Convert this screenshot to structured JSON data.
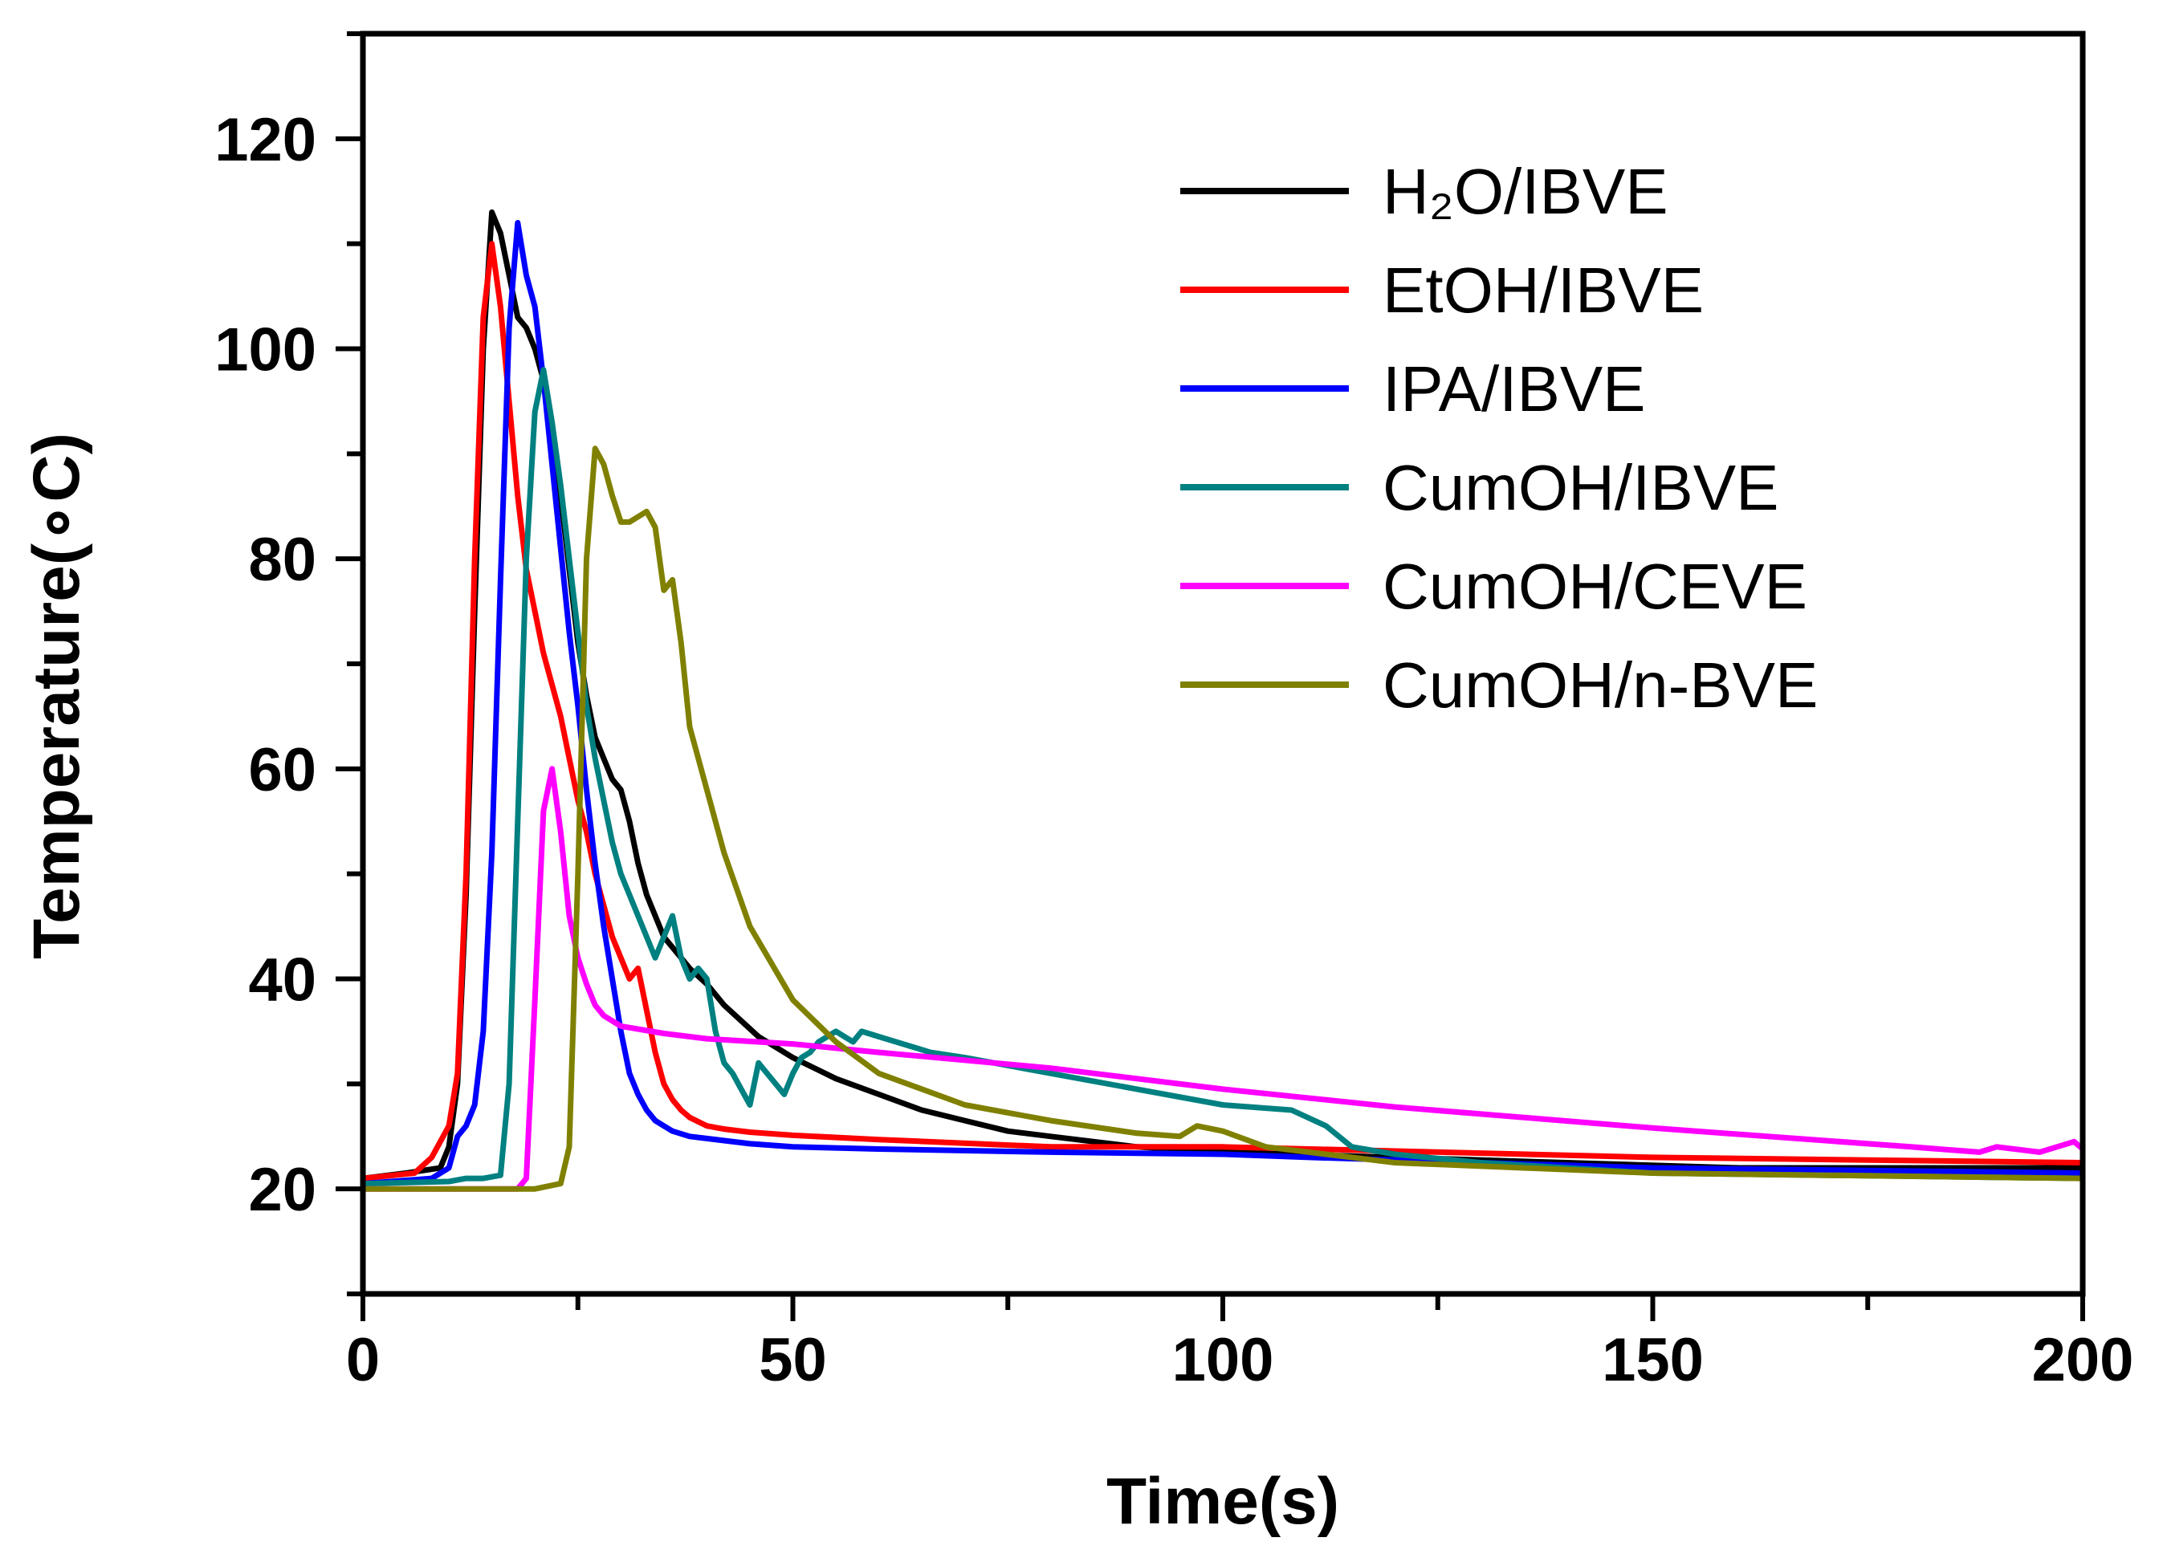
{
  "chart_data": {
    "type": "line",
    "title": "",
    "xlabel": "Time(s)",
    "ylabel": "Temperature(∘C)",
    "xlim": [
      0,
      200
    ],
    "ylim": [
      10,
      130
    ],
    "xticks": [
      0,
      50,
      100,
      150,
      200
    ],
    "yticks": [
      20,
      40,
      60,
      80,
      100,
      120
    ],
    "grid": false,
    "legend_position": "top-right",
    "series": [
      {
        "name": "H₂O/IBVE",
        "color": "#000000",
        "x": [
          0,
          5,
          9,
          10,
          11,
          12,
          13,
          14,
          15,
          16,
          17,
          18,
          19,
          20,
          21,
          22,
          23,
          24,
          25,
          26,
          27,
          28,
          29,
          30,
          31,
          32,
          33,
          34,
          35,
          36,
          37,
          38,
          40,
          42,
          44,
          46,
          48,
          50,
          55,
          60,
          65,
          70,
          75,
          80,
          90,
          100,
          120,
          140,
          160,
          180,
          200
        ],
        "y": [
          21,
          21.5,
          22,
          24,
          30,
          48,
          75,
          100,
          113,
          111,
          107,
          103,
          102,
          100,
          97,
          92,
          86,
          79,
          72,
          67,
          63,
          61,
          59,
          58,
          55,
          51,
          48,
          46,
          44,
          43,
          42,
          41,
          39.5,
          37.5,
          36,
          34.5,
          33.5,
          32.5,
          30.5,
          29,
          27.5,
          26.5,
          25.5,
          25,
          24,
          23.5,
          23,
          22.5,
          22,
          22,
          22
        ]
      },
      {
        "name": "EtOH/IBVE",
        "color": "#ff0000",
        "x": [
          0,
          6,
          8,
          10,
          11,
          12,
          13,
          14,
          15,
          16,
          17,
          18,
          19,
          20,
          21,
          22,
          23,
          24,
          25,
          26,
          27,
          28,
          29,
          30,
          31,
          32,
          33,
          34,
          35,
          36,
          37,
          38,
          40,
          42,
          45,
          50,
          60,
          80,
          100,
          150,
          200
        ],
        "y": [
          21,
          21.5,
          23,
          26,
          31,
          50,
          80,
          103,
          110,
          104,
          95,
          86,
          79,
          75,
          71,
          68,
          65,
          61,
          57,
          54,
          50,
          47,
          44,
          42,
          40,
          41,
          37,
          33,
          30,
          28.5,
          27.5,
          26.8,
          26,
          25.7,
          25.4,
          25.1,
          24.7,
          24,
          24,
          23,
          22.5
        ]
      },
      {
        "name": "IPA/IBVE",
        "color": "#0000ff",
        "x": [
          0,
          8,
          10,
          11,
          12,
          13,
          14,
          15,
          16,
          17,
          18,
          19,
          20,
          21,
          22,
          23,
          24,
          25,
          26,
          27,
          28,
          29,
          30,
          31,
          32,
          33,
          34,
          35,
          36,
          38,
          40,
          45,
          50,
          60,
          80,
          100,
          110,
          150,
          200
        ],
        "y": [
          20.5,
          21,
          22,
          25,
          26,
          28,
          35,
          52,
          78,
          102,
          112,
          107,
          104,
          97,
          89,
          81,
          73,
          66,
          58,
          51,
          45,
          40,
          35,
          31,
          29,
          27.5,
          26.5,
          26,
          25.5,
          25,
          24.8,
          24.3,
          24,
          23.8,
          23.5,
          23.3,
          23,
          22,
          21.5
        ]
      },
      {
        "name": "CumOH/IBVE",
        "color": "#008080",
        "x": [
          0,
          10,
          12,
          14,
          16,
          17,
          18,
          19,
          20,
          21,
          22,
          23,
          24,
          25,
          26,
          27,
          28,
          29,
          30,
          31,
          32,
          33,
          34,
          35,
          36,
          37,
          38,
          39,
          40,
          41,
          42,
          43,
          44,
          45,
          46,
          47,
          48,
          49,
          50,
          51,
          52,
          53,
          54,
          55,
          56,
          57,
          58,
          60,
          62,
          64,
          66,
          70,
          80,
          90,
          100,
          108,
          112,
          115,
          120,
          130,
          150,
          200
        ],
        "y": [
          20.5,
          20.7,
          21,
          21,
          21.3,
          30,
          55,
          80,
          94,
          98,
          93,
          87,
          80,
          73,
          66,
          61,
          57,
          53,
          50,
          48,
          46,
          44,
          42,
          44,
          46,
          42,
          40,
          41,
          40,
          35,
          32,
          31,
          29.5,
          28,
          32,
          31,
          30,
          29,
          31,
          32.5,
          33,
          34,
          34.5,
          35,
          34.5,
          34,
          35,
          34.5,
          34,
          33.5,
          33,
          32.5,
          31,
          29.5,
          28,
          27.5,
          26,
          24,
          23.3,
          22.5,
          21.5,
          21
        ]
      },
      {
        "name": "CumOH/CEVE",
        "color": "#ff00ff",
        "x": [
          0,
          18,
          19,
          20,
          21,
          22,
          23,
          24,
          25,
          26,
          27,
          28,
          30,
          35,
          40,
          50,
          60,
          80,
          100,
          120,
          150,
          180,
          188,
          190,
          195,
          199,
          200
        ],
        "y": [
          20,
          20,
          21,
          38,
          56,
          60,
          54,
          46,
          42,
          39.5,
          37.5,
          36.5,
          35.5,
          34.8,
          34.3,
          33.8,
          33,
          31.5,
          29.5,
          27.8,
          25.8,
          24,
          23.5,
          24,
          23.5,
          24.5,
          23.8
        ]
      },
      {
        "name": "CumOH/n-BVE",
        "color": "#808000",
        "x": [
          0,
          20,
          23,
          24,
          25,
          26,
          27,
          28,
          29,
          30,
          31,
          32,
          33,
          34,
          35,
          36,
          37,
          38,
          40,
          42,
          45,
          50,
          55,
          60,
          70,
          80,
          90,
          95,
          97,
          100,
          105,
          120,
          150,
          200
        ],
        "y": [
          20,
          20,
          20.5,
          24,
          50,
          80,
          90.5,
          89,
          86,
          83.5,
          83.5,
          84,
          84.5,
          83,
          77,
          78,
          72,
          64,
          58,
          52,
          45,
          38,
          34,
          31,
          28,
          26.5,
          25.3,
          25,
          26,
          25.5,
          24,
          22.5,
          21.5,
          21
        ]
      }
    ]
  }
}
